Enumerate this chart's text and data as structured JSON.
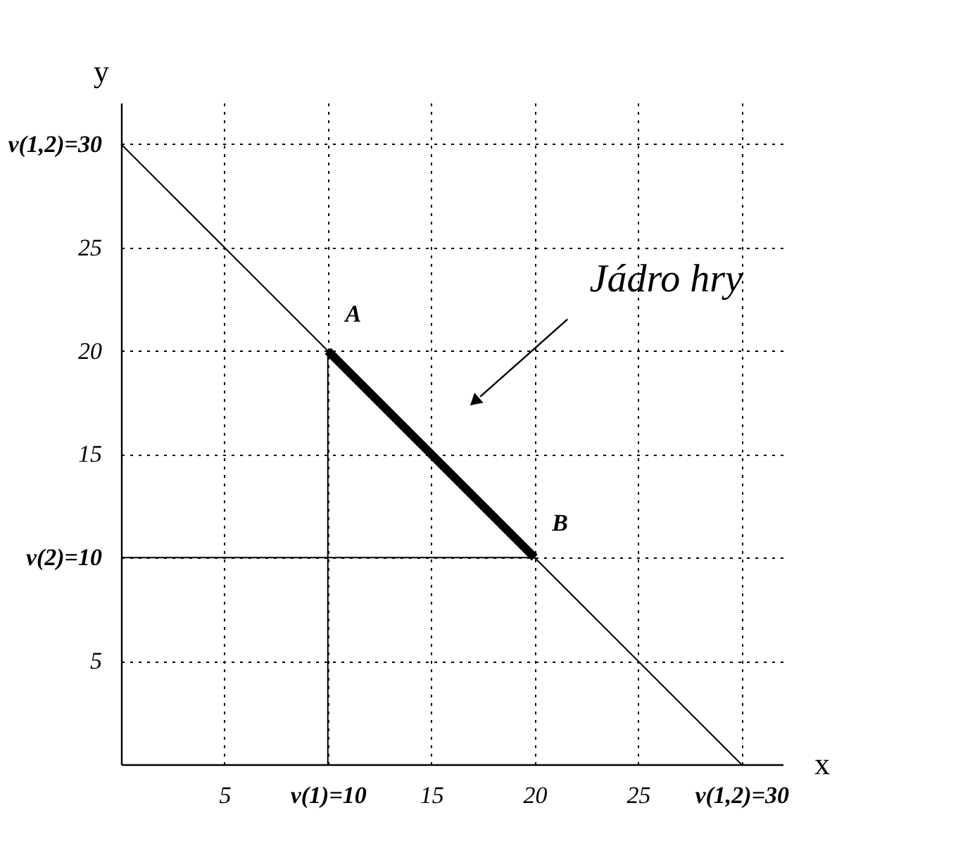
{
  "chart_data": {
    "type": "line",
    "xlabel": "x",
    "ylabel": "y",
    "xlim": [
      0,
      32
    ],
    "ylim": [
      0,
      32
    ],
    "xticks": [
      5,
      {
        "value": 10,
        "label": "v(1)=10"
      },
      15,
      20,
      25,
      {
        "value": 30,
        "label": "v(1,2)=30"
      }
    ],
    "yticks": [
      5,
      {
        "value": 10,
        "label": "v(2)=10"
      },
      15,
      20,
      25,
      {
        "value": 30,
        "label": "v(1,2)=30"
      }
    ],
    "series": [
      {
        "color": "#000000",
        "x": [
          0,
          30
        ],
        "values": [
          30,
          0
        ]
      },
      {
        "color": "#000000",
        "x": [
          10,
          20
        ],
        "values": [
          20,
          10
        ]
      },
      {
        "color": "#000000",
        "x": [
          10,
          10
        ],
        "values": [
          0,
          20
        ]
      },
      {
        "color": "#000000",
        "x": [
          0,
          20
        ],
        "values": [
          10,
          10
        ]
      }
    ],
    "annotations": [
      {
        "text": "A",
        "x": 10,
        "y": 20
      },
      {
        "text": "B",
        "x": 20,
        "y": 10
      },
      "Jádro hry"
    ],
    "grid": true
  }
}
